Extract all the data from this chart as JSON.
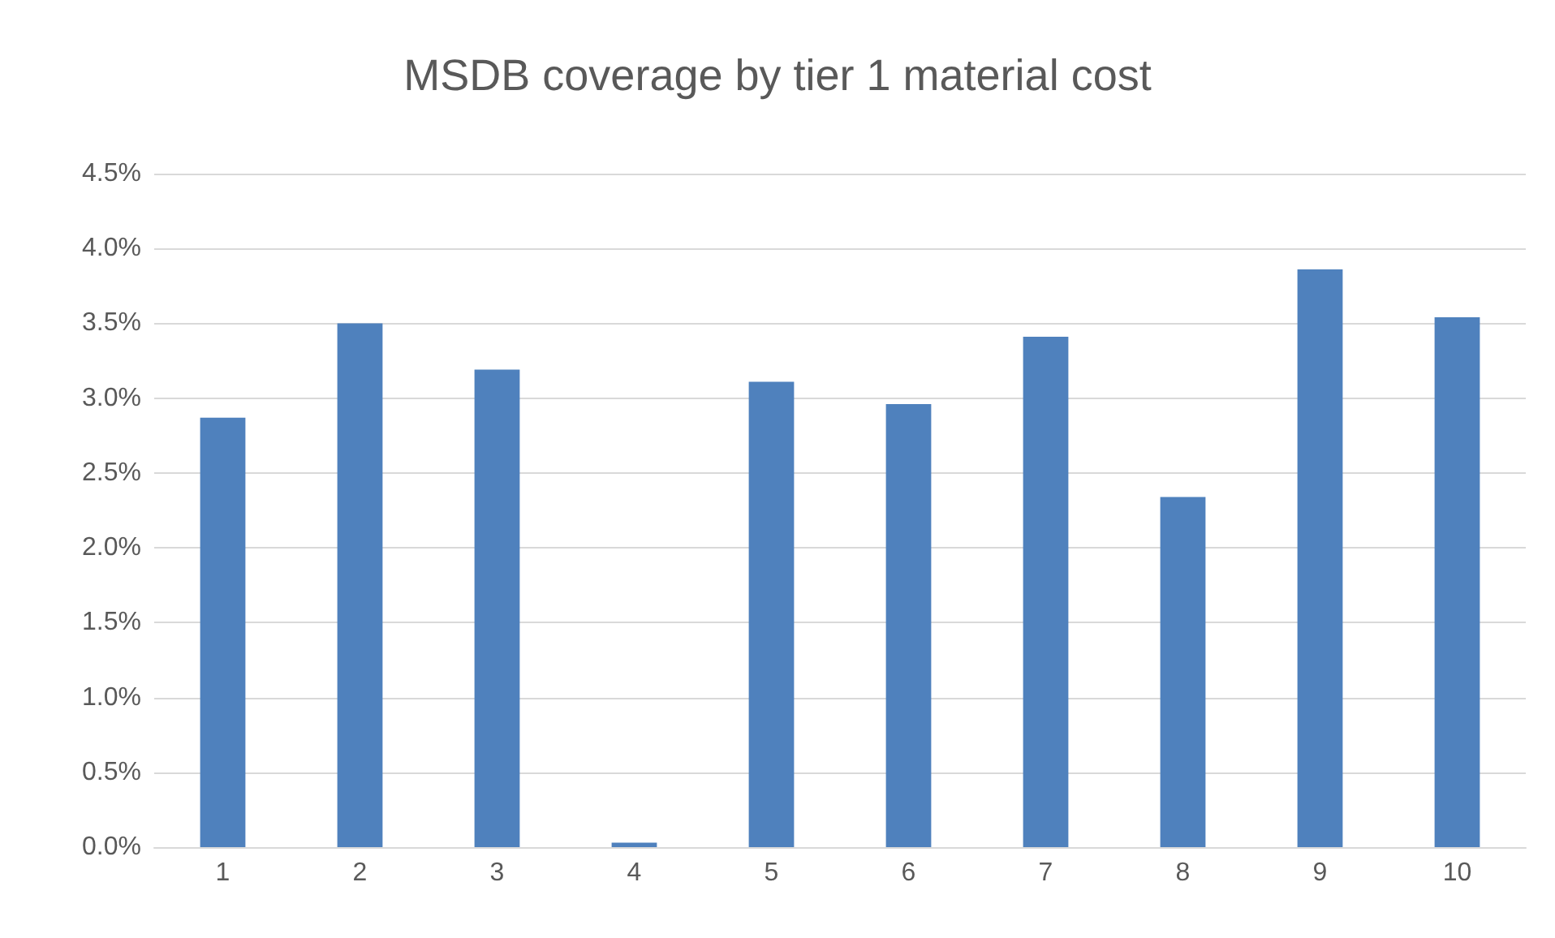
{
  "chart_data": {
    "type": "bar",
    "title": "MSDB coverage by tier 1 material cost",
    "categories": [
      "1",
      "2",
      "3",
      "4",
      "5",
      "6",
      "7",
      "8",
      "9",
      "10"
    ],
    "values": [
      2.87,
      3.5,
      3.19,
      0.03,
      3.11,
      2.96,
      3.41,
      2.34,
      3.86,
      3.54
    ],
    "color": "#4f81bd",
    "ylim": [
      0,
      4.5
    ],
    "yticks": [
      {
        "value": 0,
        "label": "0.0%"
      },
      {
        "value": 0.5,
        "label": "0.5%"
      },
      {
        "value": 1,
        "label": "1.0%"
      },
      {
        "value": 1.5,
        "label": "1.5%"
      },
      {
        "value": 2,
        "label": "2.0%"
      },
      {
        "value": 2.5,
        "label": "2.5%"
      },
      {
        "value": 3,
        "label": "3.0%"
      },
      {
        "value": 3.5,
        "label": "3.5%"
      },
      {
        "value": 4,
        "label": "4.0%"
      },
      {
        "value": 4.5,
        "label": "4.5%"
      }
    ],
    "grid": "y"
  }
}
